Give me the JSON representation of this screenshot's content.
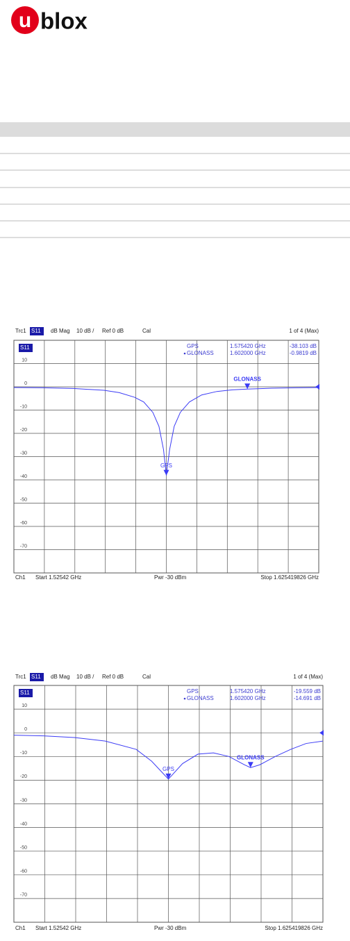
{
  "logo": {
    "mark": "u",
    "text": "blox"
  },
  "chart_data": [
    {
      "type": "line",
      "header": [
        "Trc1",
        "S11",
        "dB Mag",
        "10 dB /",
        "Ref 0 dB",
        "Cal"
      ],
      "status": "1 of 4 (Max)",
      "trace": "S11",
      "footer": [
        "Ch1",
        "Start 1.52542 GHz",
        "Pwr -30 dBm",
        "Stop 1.625419826 GHz"
      ],
      "xlim": [
        1.52542,
        1.625419826
      ],
      "ylim": [
        -80,
        20
      ],
      "yticks": [
        10,
        0,
        -10,
        -20,
        -30,
        -40,
        -50,
        -60,
        -70
      ],
      "grid": true,
      "color": "#3b3bf5",
      "ref_level": 0,
      "x": [
        1.52542,
        1.535,
        1.545,
        1.555,
        1.56,
        1.565,
        1.568,
        1.571,
        1.573,
        1.5745,
        1.57542,
        1.5765,
        1.578,
        1.58,
        1.583,
        1.587,
        1.592,
        1.597,
        1.602,
        1.61,
        1.618,
        1.625419826
      ],
      "values": [
        -0.3,
        -0.4,
        -0.7,
        -1.5,
        -2.5,
        -4.5,
        -6.5,
        -11,
        -17,
        -27,
        -38.103,
        -27,
        -17,
        -11,
        -6.5,
        -3.5,
        -2,
        -1.3,
        -0.9819,
        -0.6,
        -0.4,
        -0.3
      ],
      "markers": [
        {
          "name": "GPS",
          "x": 1.57542,
          "x_label": "1.575420 GHz",
          "value": -38.103,
          "value_label": "-38.103 dB",
          "active": false
        },
        {
          "name": "GLONASS",
          "x": 1.602,
          "x_label": "1.602000 GHz",
          "value": -0.9819,
          "value_label": "-0.9819 dB",
          "active": true
        }
      ]
    },
    {
      "type": "line",
      "header": [
        "Trc1",
        "S11",
        "dB Mag",
        "10 dB /",
        "Ref 0 dB",
        "Cal"
      ],
      "status": "1 of 4 (Max)",
      "trace": "S11",
      "footer": [
        "Ch1",
        "Start 1.52542 GHz",
        "Pwr -30 dBm",
        "Stop 1.625419826 GHz"
      ],
      "xlim": [
        1.52542,
        1.625419826
      ],
      "ylim": [
        -80,
        20
      ],
      "yticks": [
        10,
        0,
        -10,
        -20,
        -30,
        -40,
        -50,
        -60,
        -70
      ],
      "grid": true,
      "color": "#3b3bf5",
      "ref_level": 0,
      "x": [
        1.52542,
        1.535,
        1.545,
        1.555,
        1.565,
        1.57,
        1.57542,
        1.58,
        1.585,
        1.59,
        1.595,
        1.6,
        1.602,
        1.605,
        1.61,
        1.615,
        1.62,
        1.625419826
      ],
      "values": [
        -1,
        -1.3,
        -2,
        -3.5,
        -7,
        -12,
        -19.559,
        -13,
        -9,
        -8.5,
        -10,
        -13.5,
        -14.691,
        -13.5,
        -10,
        -7,
        -4.5,
        -3.5
      ],
      "markers": [
        {
          "name": "GPS",
          "x": 1.57542,
          "x_label": "1.575420 GHz",
          "value": -19.559,
          "value_label": "-19.559 dB",
          "active": false
        },
        {
          "name": "GLONASS",
          "x": 1.602,
          "x_label": "1.602000 GHz",
          "value": -14.691,
          "value_label": "-14.691 dB",
          "active": true
        }
      ]
    }
  ]
}
